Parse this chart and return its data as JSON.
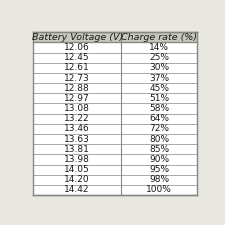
{
  "col1_header": "Battery Voltage (V)",
  "col2_header": "Charge rate (%)",
  "rows": [
    [
      "12.06",
      "14%"
    ],
    [
      "12.45",
      "25%"
    ],
    [
      "12.61",
      "30%"
    ],
    [
      "12.73",
      "37%"
    ],
    [
      "12.88",
      "45%"
    ],
    [
      "12.97",
      "51%"
    ],
    [
      "13.08",
      "58%"
    ],
    [
      "13.22",
      "64%"
    ],
    [
      "13.46",
      "72%"
    ],
    [
      "13.63",
      "80%"
    ],
    [
      "13.81",
      "85%"
    ],
    [
      "13.98",
      "90%"
    ],
    [
      "14.05",
      "95%"
    ],
    [
      "14.20",
      "98%"
    ],
    [
      "14.42",
      "100%"
    ]
  ],
  "background_color": "#ffffff",
  "header_bg": "#c8c8c0",
  "line_color": "#888880",
  "text_color": "#1a1a1a",
  "font_size": 6.5,
  "header_font_size": 6.8,
  "fig_bg": "#e8e8e0"
}
